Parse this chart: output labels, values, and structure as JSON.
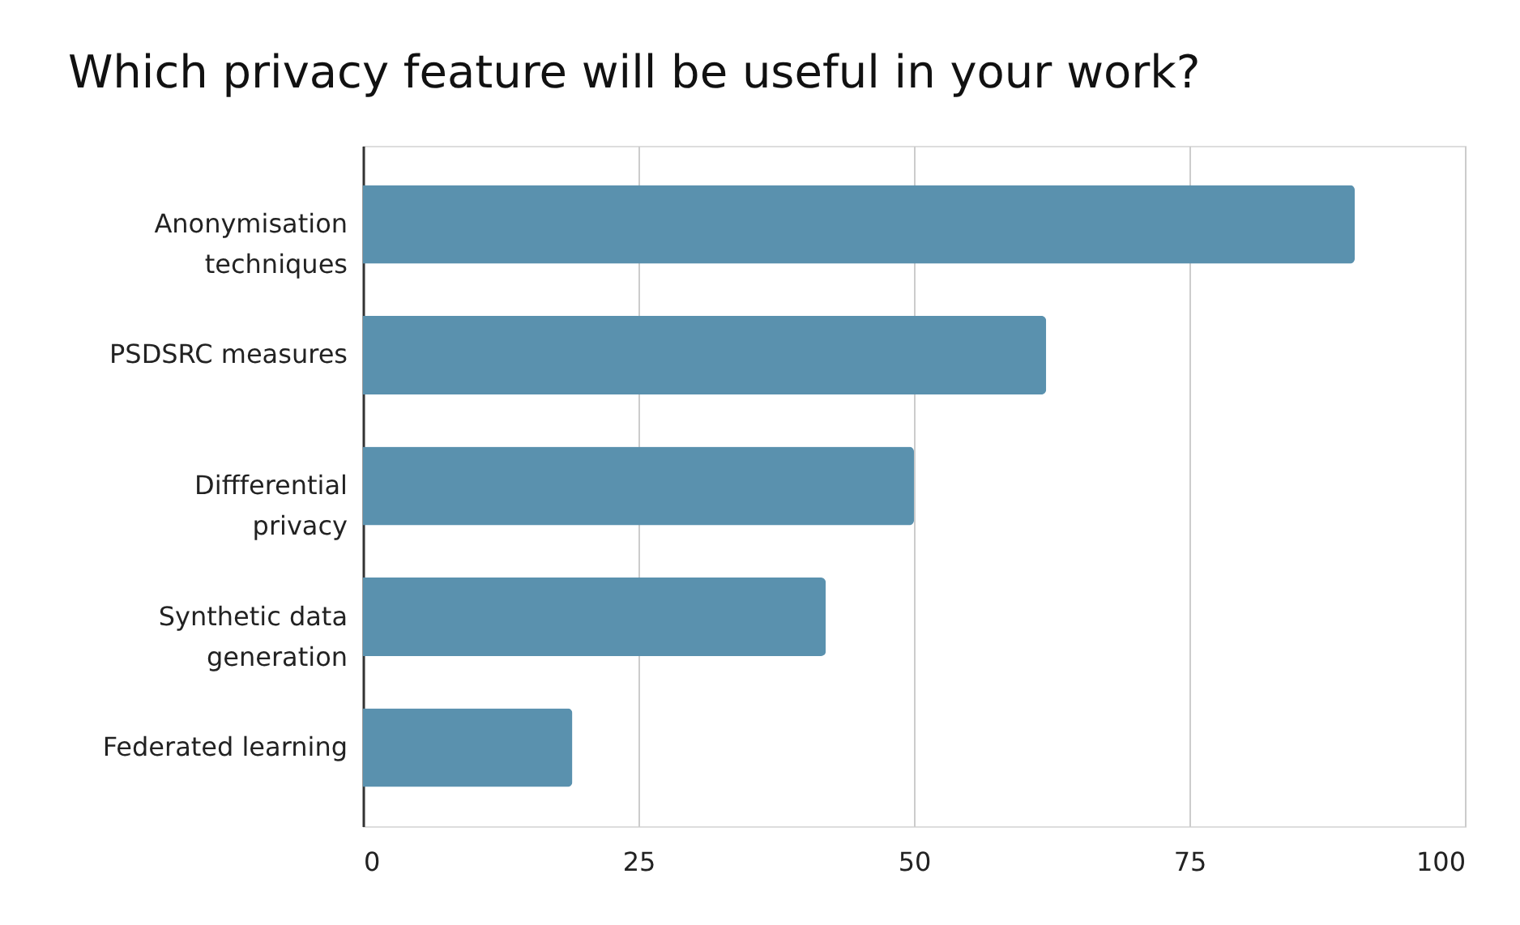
{
  "chart_data": {
    "type": "bar",
    "orientation": "horizontal",
    "title": "Which privacy feature will be useful in your work?",
    "categories": [
      "Anonymisation techniques",
      "PSDSRC measures",
      "Diffferential privacy",
      "Synthetic data generation",
      "Federated learning"
    ],
    "values": [
      90,
      62,
      50,
      42,
      19
    ],
    "color": "#5a91ae",
    "xlim": [
      0,
      100
    ],
    "xticks": [
      0,
      25,
      50,
      75,
      100
    ],
    "grid": "x"
  }
}
